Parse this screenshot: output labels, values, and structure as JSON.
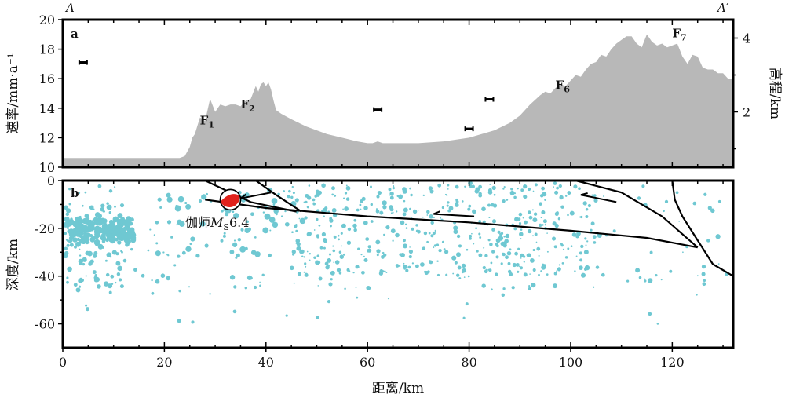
{
  "corner_labels": {
    "left": "A",
    "right": "A′"
  },
  "xlabel": "距离/km",
  "colors": {
    "elevation": "#b8b8b8",
    "quake": "#6fc8d2",
    "fault": "#000000",
    "beach_red": "#e0211b"
  },
  "chart_data": [
    {
      "type": "area",
      "panel_label": "a",
      "x_unit": "km",
      "xlim": [
        0,
        132
      ],
      "ylabel": "速率/mm·a⁻¹",
      "ylim": [
        10,
        20
      ],
      "yticks": [
        10,
        12,
        14,
        16,
        18,
        20
      ],
      "y2label": "高程/km",
      "y2lim": [
        0.5,
        4.5
      ],
      "y2ticks": [
        2,
        4
      ],
      "elevation_profile": {
        "x": [
          0,
          5,
          10,
          15,
          20,
          23,
          24,
          25,
          25.5,
          26,
          27,
          28,
          29,
          30,
          31,
          32,
          33,
          34,
          35,
          36,
          37,
          38,
          38.5,
          39,
          39.5,
          40,
          40.5,
          41,
          41.5,
          42,
          43,
          45,
          48,
          52,
          55,
          58,
          60,
          61,
          62,
          63,
          65,
          70,
          75,
          80,
          85,
          88,
          90,
          92,
          94,
          95,
          96,
          97,
          98,
          99,
          100,
          101,
          102,
          103,
          104,
          105,
          106,
          107,
          108,
          109,
          110,
          111,
          112,
          113,
          114,
          115,
          116,
          117,
          118,
          119,
          120,
          121,
          122,
          123,
          124,
          125,
          126,
          127,
          128,
          129,
          130,
          131,
          132
        ],
        "elevation_km": [
          0.75,
          0.75,
          0.75,
          0.75,
          0.75,
          0.75,
          0.8,
          1.05,
          1.3,
          1.4,
          1.85,
          1.75,
          2.35,
          2.0,
          2.2,
          2.15,
          2.2,
          2.2,
          2.15,
          2.3,
          2.35,
          2.7,
          2.55,
          2.75,
          2.8,
          2.7,
          2.8,
          2.6,
          2.3,
          2.05,
          1.95,
          1.8,
          1.6,
          1.4,
          1.3,
          1.2,
          1.15,
          1.15,
          1.2,
          1.15,
          1.15,
          1.15,
          1.2,
          1.3,
          1.5,
          1.7,
          1.9,
          2.2,
          2.45,
          2.55,
          2.5,
          2.65,
          2.75,
          2.7,
          2.85,
          3.0,
          2.95,
          3.15,
          3.3,
          3.35,
          3.55,
          3.5,
          3.7,
          3.85,
          3.95,
          4.05,
          4.05,
          3.85,
          3.75,
          4.1,
          3.9,
          3.8,
          3.85,
          3.75,
          3.8,
          3.85,
          3.5,
          3.3,
          3.55,
          3.5,
          3.2,
          3.15,
          3.15,
          3.05,
          3.05,
          2.9,
          2.9
        ]
      },
      "rate_points": {
        "x": [
          4,
          62,
          80,
          84
        ],
        "rate_mm_a": [
          17.1,
          13.9,
          12.6,
          14.6
        ],
        "error": [
          0.15,
          0.12,
          0.15,
          0.15
        ]
      },
      "fault_labels": [
        {
          "name": "F",
          "sub": "1",
          "x": 27,
          "y": 12.9
        },
        {
          "name": "F",
          "sub": "2",
          "x": 35,
          "y": 14.0
        },
        {
          "name": "F",
          "sub": "6",
          "x": 97,
          "y": 15.3
        },
        {
          "name": "F",
          "sub": "7",
          "x": 120,
          "y": 18.8
        }
      ]
    },
    {
      "type": "scatter",
      "panel_label": "b",
      "x_unit": "km",
      "xlim": [
        0,
        132
      ],
      "xticks": [
        0,
        20,
        40,
        60,
        80,
        100,
        120
      ],
      "ylabel": "深度/km",
      "ylim": [
        -70,
        0
      ],
      "yticks": [
        0,
        -20,
        -40,
        -60
      ],
      "event_label": {
        "prefix": "伽师",
        "m": "M",
        "sub": "S",
        "value": "6.4"
      },
      "focal_mechanism": {
        "x": 33,
        "depth": -8
      },
      "fault_lines": [
        {
          "x": [
            28,
            33,
            37,
            46
          ],
          "depth": [
            0,
            -5,
            -9,
            -13
          ]
        },
        {
          "x": [
            38,
            42,
            47
          ],
          "depth": [
            0,
            -6,
            -13
          ]
        },
        {
          "x": [
            28,
            40,
            60,
            80,
            100,
            115,
            125
          ],
          "depth": [
            -8,
            -11.5,
            -15,
            -17.5,
            -21,
            -24,
            -28
          ]
        },
        {
          "x": [
            101,
            110,
            118,
            125
          ],
          "depth": [
            0,
            -5,
            -15,
            -28
          ]
        },
        {
          "x": [
            120,
            120.5,
            122,
            125,
            128,
            132
          ],
          "depth": [
            0,
            -8,
            -15,
            -25,
            -35,
            -40
          ]
        }
      ],
      "arrows": [
        {
          "x": [
            41,
            35
          ],
          "depth": [
            -5,
            -7.5
          ]
        },
        {
          "x": [
            81,
            73
          ],
          "depth": [
            -15,
            -14
          ]
        },
        {
          "x": [
            109,
            102
          ],
          "depth": [
            -9,
            -6
          ]
        }
      ],
      "earthquakes_note": "dense cloud of events, 0–132 km, mostly 0–45 km depth"
    }
  ]
}
